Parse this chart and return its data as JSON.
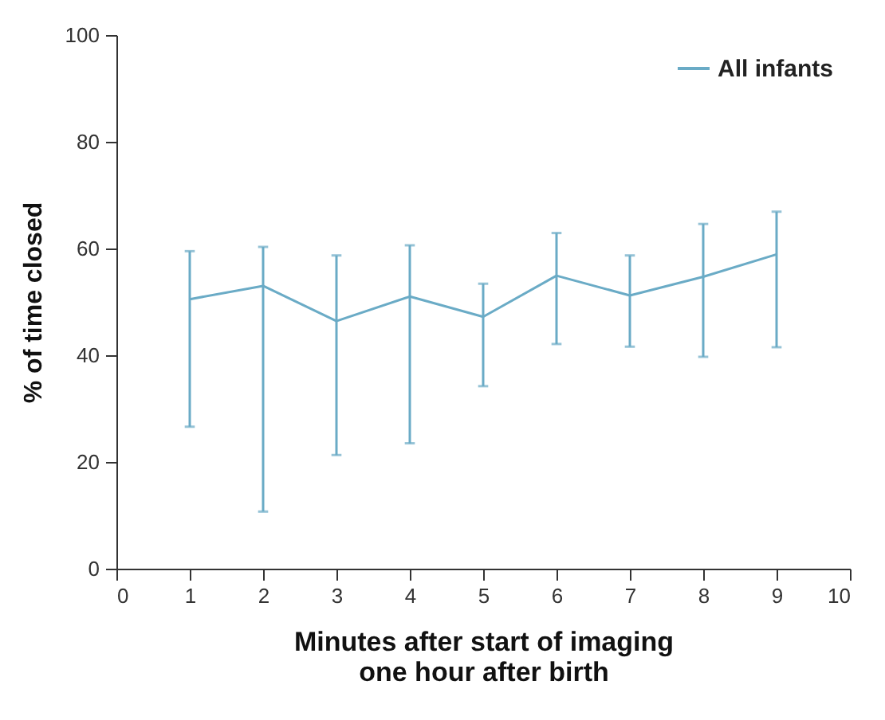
{
  "chart_data": {
    "type": "line",
    "xlabel": "Minutes after start of imaging\none hour after birth",
    "ylabel": "% of time closed",
    "x": [
      1,
      2,
      3,
      4,
      5,
      6,
      7,
      8,
      9
    ],
    "series": [
      {
        "name": "All infants",
        "color": "#6aabc6",
        "values": [
          50.5,
          53,
          46.4,
          51,
          47.2,
          54.9,
          51.2,
          54.7,
          58.9
        ],
        "errors": [
          [
            26.6,
            59.5
          ],
          [
            10.7,
            60.3
          ],
          [
            21.3,
            58.7
          ],
          [
            23.5,
            60.6
          ],
          [
            34.2,
            53.4
          ],
          [
            42.1,
            62.9
          ],
          [
            41.6,
            58.7
          ],
          [
            39.7,
            64.6
          ],
          [
            41.5,
            66.9
          ]
        ]
      }
    ],
    "xlim": [
      0,
      10
    ],
    "xticks": [
      0,
      1,
      2,
      3,
      4,
      5,
      6,
      7,
      8,
      9,
      10
    ],
    "ylim": [
      0,
      100
    ],
    "yticks": [
      0,
      20,
      40,
      60,
      80,
      100
    ],
    "grid": false,
    "legend": "top right",
    "marker": "none",
    "line_style": "solid"
  }
}
